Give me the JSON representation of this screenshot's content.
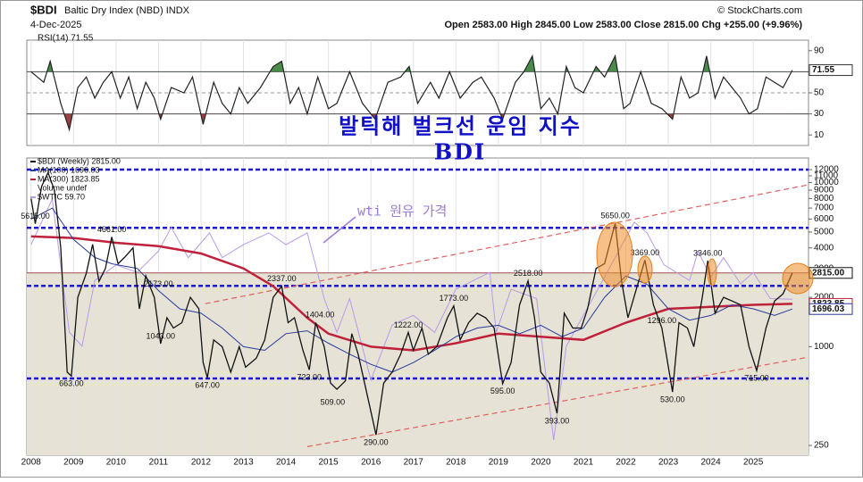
{
  "header": {
    "symbol": "$BDI",
    "name": "Baltic Dry Index (NBD) INDX",
    "source": "© StockCharts.com",
    "date": "4-Dec-2025",
    "ohlc": "Open 2583.00  High 2845.00  Low 2583.00  Close 2815.00  Chg +255.00 (+9.96%)"
  },
  "overlay": {
    "title": "발틱해 벌크선 운임 지수",
    "subtitle": "BDI",
    "note": "wti 원유 가격"
  },
  "chart_data": [
    {
      "type": "line",
      "legend": "RSI(14) 71.55",
      "xlim": [
        2007.9,
        2026.3
      ],
      "ylim": [
        0,
        100
      ],
      "yticks": [
        10,
        30,
        50,
        70,
        90
      ],
      "xticks": [
        2008,
        2009,
        2010,
        2011,
        2012,
        2013,
        2014,
        2015,
        2016,
        2017,
        2018,
        2019,
        2020,
        2021,
        2022,
        2023,
        2024,
        2025
      ],
      "bands": [
        30,
        70
      ],
      "midline": 50,
      "overbought_color": "#4a8a4a",
      "oversold_color": "#9a4040",
      "series": [
        {
          "name": "RSI(14)",
          "color": "#222",
          "end_label": "71.55",
          "x": [
            2008.0,
            2008.3,
            2008.45,
            2008.7,
            2008.9,
            2009.1,
            2009.3,
            2009.5,
            2009.7,
            2009.9,
            2010.1,
            2010.3,
            2010.5,
            2010.7,
            2010.9,
            2011.05,
            2011.3,
            2011.6,
            2011.8,
            2012.05,
            2012.3,
            2012.5,
            2012.7,
            2012.9,
            2013.1,
            2013.4,
            2013.7,
            2013.9,
            2014.1,
            2014.3,
            2014.5,
            2014.75,
            2015.0,
            2015.2,
            2015.5,
            2015.8,
            2016.1,
            2016.4,
            2016.7,
            2016.9,
            2017.1,
            2017.4,
            2017.6,
            2017.85,
            2018.1,
            2018.4,
            2018.6,
            2018.9,
            2019.1,
            2019.4,
            2019.6,
            2019.8,
            2020.0,
            2020.2,
            2020.4,
            2020.6,
            2020.8,
            2021.0,
            2021.3,
            2021.5,
            2021.75,
            2021.95,
            2022.1,
            2022.35,
            2022.6,
            2022.85,
            2023.1,
            2023.3,
            2023.5,
            2023.7,
            2023.9,
            2024.1,
            2024.3,
            2024.5,
            2024.7,
            2024.9,
            2025.1,
            2025.3,
            2025.5,
            2025.7,
            2025.92
          ],
          "values": [
            70,
            60,
            80,
            40,
            15,
            55,
            65,
            45,
            60,
            70,
            45,
            65,
            35,
            60,
            45,
            25,
            55,
            50,
            65,
            20,
            60,
            40,
            30,
            55,
            40,
            55,
            75,
            80,
            40,
            55,
            30,
            65,
            35,
            40,
            70,
            40,
            25,
            60,
            65,
            75,
            40,
            60,
            45,
            70,
            45,
            60,
            65,
            45,
            25,
            60,
            70,
            85,
            35,
            45,
            30,
            75,
            55,
            50,
            75,
            65,
            85,
            35,
            40,
            70,
            40,
            35,
            25,
            65,
            45,
            50,
            85,
            45,
            65,
            55,
            45,
            30,
            35,
            65,
            60,
            55,
            71.55
          ]
        }
      ]
    },
    {
      "type": "line",
      "log_scale": true,
      "xlim": [
        2007.9,
        2026.3
      ],
      "ylim": [
        218,
        12780
      ],
      "y2lim": [
        15.8,
        187
      ],
      "y2_log_scale": true,
      "xticks": [
        2008,
        2009,
        2010,
        2011,
        2012,
        2013,
        2014,
        2015,
        2016,
        2017,
        2018,
        2019,
        2020,
        2021,
        2022,
        2023,
        2024,
        2025
      ],
      "yticks": [
        250,
        1000,
        2000,
        3000,
        4000,
        5000,
        6000,
        7000,
        8000,
        9000,
        10000,
        11000,
        12000
      ],
      "shade_color": "#e6e3d6",
      "legend_notes": [
        "Volume undef"
      ],
      "reference_lines": {
        "values": [
          12000,
          5300,
          2350,
          640
        ],
        "color": "#1a1ad0"
      },
      "trendlines": {
        "color": "#e06060",
        "lines": [
          {
            "x": [
              2012.1,
              2026.3
            ],
            "values": [
              1830,
              9700
            ]
          },
          {
            "x": [
              2014.5,
              2026.3
            ],
            "values": [
              246,
              864
            ]
          }
        ]
      },
      "series": [
        {
          "name": "$BDI (Weekly) 2815.00",
          "color": "#111",
          "end_label": "2815.00",
          "x": [
            2008.0,
            2008.1,
            2008.25,
            2008.4,
            2008.55,
            2008.7,
            2008.85,
            2008.95,
            2009.1,
            2009.3,
            2009.45,
            2009.6,
            2009.75,
            2009.9,
            2010.05,
            2010.2,
            2010.4,
            2010.55,
            2010.7,
            2010.9,
            2011.05,
            2011.2,
            2011.35,
            2011.55,
            2011.75,
            2011.95,
            2012.05,
            2012.15,
            2012.3,
            2012.5,
            2012.7,
            2012.9,
            2013.05,
            2013.3,
            2013.5,
            2013.7,
            2013.9,
            2014.05,
            2014.2,
            2014.4,
            2014.55,
            2014.7,
            2014.9,
            2015.05,
            2015.2,
            2015.4,
            2015.55,
            2015.7,
            2015.85,
            2016.05,
            2016.12,
            2016.3,
            2016.5,
            2016.7,
            2016.88,
            2017.0,
            2017.2,
            2017.35,
            2017.55,
            2017.8,
            2017.95,
            2018.1,
            2018.3,
            2018.5,
            2018.7,
            2018.9,
            2019.1,
            2019.3,
            2019.5,
            2019.7,
            2019.85,
            2020.0,
            2020.2,
            2020.38,
            2020.55,
            2020.75,
            2020.95,
            2021.1,
            2021.3,
            2021.5,
            2021.75,
            2021.9,
            2022.05,
            2022.3,
            2022.45,
            2022.65,
            2022.85,
            2023.1,
            2023.25,
            2023.45,
            2023.6,
            2023.8,
            2023.93,
            2024.1,
            2024.3,
            2024.5,
            2024.7,
            2024.9,
            2025.08,
            2025.3,
            2025.5,
            2025.7,
            2025.92
          ],
          "values": [
            8000,
            5615,
            9500,
            11500,
            9000,
            4000,
            700,
            663,
            2000,
            2800,
            4200,
            2500,
            3000,
            4661,
            3200,
            3500,
            4000,
            1700,
            2700,
            2000,
            1043,
            1500,
            1300,
            1400,
            2000,
            1700,
            800,
            647,
            1100,
            1000,
            700,
            1000,
            750,
            850,
            1100,
            2000,
            2337,
            1400,
            1500,
            950,
            723,
            1400,
            1000,
            600,
            550,
            620,
            1200,
            900,
            600,
            350,
            290,
            600,
            700,
            900,
            1222,
            950,
            1300,
            900,
            1000,
            1500,
            1773,
            1100,
            1400,
            1600,
            1500,
            1300,
            595,
            800,
            1800,
            2518,
            1500,
            700,
            600,
            393,
            1600,
            1300,
            1300,
            1700,
            3000,
            3200,
            5650,
            2500,
            1500,
            2500,
            3369,
            1800,
            1296,
            530,
            1400,
            1300,
            1000,
            2000,
            3346,
            1600,
            2000,
            1900,
            1800,
            1000,
            715,
            1300,
            1900,
            2100,
            2815
          ]
        },
        {
          "name": "MA(100) 1696.03",
          "color": "#2a3a9a",
          "end_label": "1696.03",
          "x": [
            2008.0,
            2008.5,
            2009.0,
            2009.5,
            2009.9,
            2010.5,
            2011.0,
            2011.5,
            2012.0,
            2012.5,
            2013.0,
            2013.5,
            2014.0,
            2014.5,
            2015.0,
            2015.5,
            2016.0,
            2016.5,
            2017.0,
            2017.5,
            2018.0,
            2018.5,
            2019.0,
            2019.5,
            2020.0,
            2020.5,
            2021.0,
            2021.5,
            2022.0,
            2022.5,
            2023.0,
            2023.5,
            2024.0,
            2024.5,
            2025.0,
            2025.5,
            2025.92
          ],
          "values": [
            6000,
            7000,
            4500,
            3500,
            3200,
            3000,
            2200,
            1700,
            1600,
            1300,
            1000,
            950,
            1200,
            1250,
            1050,
            900,
            780,
            700,
            800,
            950,
            1150,
            1300,
            1350,
            1200,
            1350,
            1150,
            1300,
            2000,
            2700,
            2400,
            1700,
            1450,
            1550,
            1800,
            1700,
            1550,
            1696.03
          ]
        },
        {
          "name": "MA(300) 1823.85",
          "color": "#c0203a",
          "end_label": "1823.85",
          "x": [
            2008.0,
            2009.0,
            2010.0,
            2011.0,
            2012.0,
            2013.0,
            2013.7,
            2014.5,
            2015.0,
            2016.0,
            2017.0,
            2018.0,
            2019.0,
            2020.0,
            2021.0,
            2022.0,
            2023.0,
            2024.0,
            2025.0,
            2025.92
          ],
          "values": [
            4700,
            4600,
            4300,
            4100,
            3700,
            3000,
            2337,
            1500,
            1200,
            1000,
            950,
            1050,
            1200,
            1150,
            1100,
            1400,
            1700,
            1750,
            1800,
            1823.85
          ]
        },
        {
          "name": "$WTIC 59.70",
          "color": "#b79ae8",
          "axis": "y2",
          "x": [
            2008.0,
            2008.5,
            2008.9,
            2009.2,
            2009.5,
            2010.0,
            2010.5,
            2011.0,
            2011.3,
            2011.7,
            2012.2,
            2012.5,
            2013.0,
            2013.6,
            2014.0,
            2014.5,
            2014.9,
            2015.2,
            2015.5,
            2016.0,
            2016.5,
            2017.0,
            2017.5,
            2018.0,
            2018.8,
            2018.95,
            2019.3,
            2019.9,
            2020.3,
            2020.6,
            2021.0,
            2021.5,
            2022.2,
            2022.5,
            2022.9,
            2023.5,
            2023.7,
            2024.0,
            2024.3,
            2024.7,
            2025.0,
            2025.4,
            2025.92
          ],
          "values": [
            95,
            140,
            45,
            40,
            70,
            80,
            75,
            90,
            110,
            85,
            105,
            85,
            95,
            105,
            95,
            105,
            60,
            45,
            60,
            30,
            48,
            52,
            45,
            65,
            75,
            45,
            65,
            60,
            18,
            40,
            52,
            72,
            115,
            105,
            80,
            70,
            90,
            72,
            85,
            68,
            75,
            60,
            59.7
          ]
        }
      ],
      "annotations": [
        {
          "x": 2008.1,
          "value": 5615,
          "label": "5615.00"
        },
        {
          "x": 2009.9,
          "value": 4661,
          "label": "4661.00"
        },
        {
          "x": 2011.0,
          "value": 2173,
          "label": "2173.00"
        },
        {
          "x": 2013.9,
          "value": 2337,
          "label": "2337.00"
        },
        {
          "x": 2014.8,
          "value": 1404,
          "label": "1404.00"
        },
        {
          "x": 2016.88,
          "value": 1222,
          "label": "1222.00"
        },
        {
          "x": 2011.05,
          "value": 1043,
          "label": "1043.00"
        },
        {
          "x": 2008.95,
          "value": 663,
          "label": "663.00"
        },
        {
          "x": 2012.15,
          "value": 647,
          "label": "647.00"
        },
        {
          "x": 2014.55,
          "value": 723,
          "label": "723.00"
        },
        {
          "x": 2015.1,
          "value": 509,
          "label": "509.00"
        },
        {
          "x": 2016.12,
          "value": 290,
          "label": "290.00"
        },
        {
          "x": 2017.95,
          "value": 1773,
          "label": "1773.00"
        },
        {
          "x": 2019.7,
          "value": 2518,
          "label": "2518.00"
        },
        {
          "x": 2019.1,
          "value": 595,
          "label": "595.00"
        },
        {
          "x": 2020.38,
          "value": 393,
          "label": "393.00"
        },
        {
          "x": 2021.75,
          "value": 5650,
          "label": "5650.00"
        },
        {
          "x": 2022.45,
          "value": 3369,
          "label": "3369.00"
        },
        {
          "x": 2022.85,
          "value": 1296,
          "label": "1296.00"
        },
        {
          "x": 2023.93,
          "value": 3346,
          "label": "3346.00"
        },
        {
          "x": 2023.1,
          "value": 530,
          "label": "530.00"
        },
        {
          "x": 2025.08,
          "value": 715,
          "label": "715.00"
        }
      ]
    }
  ]
}
